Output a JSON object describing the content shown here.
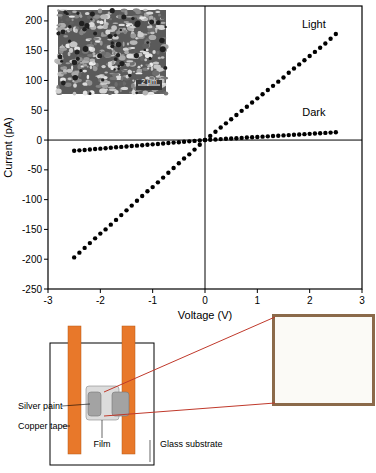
{
  "chart_data": {
    "type": "scatter",
    "x_label": "Voltage (V)",
    "y_label": "Current (pA)",
    "x": [
      -2.5,
      -2.4,
      -2.3,
      -2.2,
      -2.1,
      -2.0,
      -1.9,
      -1.8,
      -1.7,
      -1.6,
      -1.5,
      -1.4,
      -1.3,
      -1.2,
      -1.1,
      -1.0,
      -0.9,
      -0.8,
      -0.7,
      -0.6,
      -0.5,
      -0.4,
      -0.3,
      -0.2,
      -0.1,
      0,
      0.1,
      0.2,
      0.3,
      0.4,
      0.5,
      0.6,
      0.7,
      0.8,
      0.9,
      1.0,
      1.1,
      1.2,
      1.3,
      1.4,
      1.5,
      1.6,
      1.7,
      1.8,
      1.9,
      2.0,
      2.1,
      2.2,
      2.3,
      2.4,
      2.5
    ],
    "series": [
      {
        "name": "Light",
        "color": "#000000",
        "marker": "circle",
        "values": [
          -197,
          -189,
          -181,
          -173,
          -165,
          -157,
          -150,
          -142,
          -134,
          -126,
          -118,
          -110,
          -102,
          -94,
          -86,
          -79,
          -71,
          -63,
          -55,
          -47,
          -39,
          -31,
          -24,
          -16,
          -8,
          0,
          7,
          14,
          21,
          28,
          35,
          42,
          49,
          56,
          63,
          70,
          77,
          84,
          91,
          98,
          105,
          113,
          120,
          127,
          134,
          141,
          148,
          155,
          162,
          170,
          178
        ]
      },
      {
        "name": "Dark",
        "color": "#000000",
        "marker": "circle",
        "values": [
          -18,
          -17.3,
          -16.6,
          -15.8,
          -15.1,
          -14.4,
          -13.7,
          -13,
          -12.2,
          -11.5,
          -10.8,
          -10.1,
          -9.4,
          -8.6,
          -7.9,
          -7.2,
          -6.5,
          -5.8,
          -5,
          -4.3,
          -3.6,
          -2.9,
          -2.2,
          -1.4,
          -0.7,
          0,
          0.5,
          1,
          1.6,
          2.1,
          2.6,
          3.1,
          3.6,
          4.2,
          4.7,
          5.2,
          5.7,
          6.2,
          6.8,
          7.3,
          7.8,
          8.3,
          8.8,
          9.4,
          9.9,
          10.4,
          10.9,
          11.4,
          12,
          12.5,
          13
        ]
      }
    ],
    "xlim": [
      -3,
      3
    ],
    "xticks": [
      -3,
      -2,
      -1,
      0,
      1,
      2,
      3
    ],
    "ylim": [
      -250,
      225
    ],
    "yticks": [
      -250,
      -200,
      -150,
      -100,
      -50,
      0,
      50,
      100,
      150,
      200
    ],
    "grid": false
  },
  "inset": {
    "scale_bar_label": "2 μm"
  },
  "diagram": {
    "labels": {
      "silver_paint": "Silver paint",
      "copper_tape": "Copper tape",
      "film": "Film",
      "glass_substrate": "Glass substrate"
    }
  }
}
